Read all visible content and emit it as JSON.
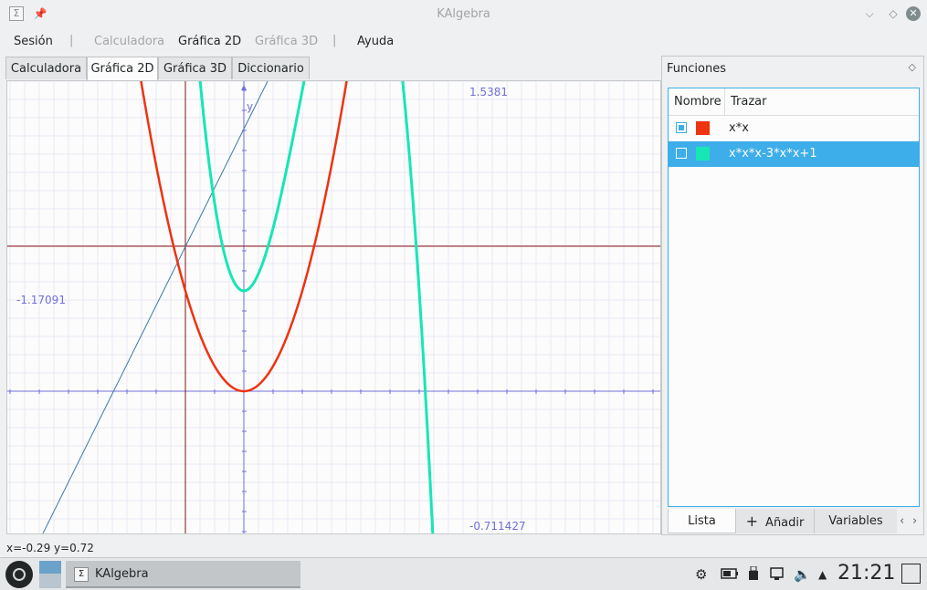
{
  "window": {
    "title": "KAlgebra",
    "app_icon_glyph": "Σ"
  },
  "menu": {
    "items": [
      {
        "label": "Sesión",
        "enabled": true
      },
      {
        "label": "Calculadora",
        "enabled": false
      },
      {
        "label": "Gráfica 2D",
        "enabled": true
      },
      {
        "label": "Gráfica 3D",
        "enabled": false
      },
      {
        "label": "Ayuda",
        "enabled": true
      }
    ],
    "separator": "|"
  },
  "tabs": [
    "Calculadora",
    "Gráfica 2D",
    "Gráfica 3D",
    "Diccionario"
  ],
  "plot": {
    "viewport_labels": {
      "top": "1.5381",
      "bottom": "-0.711427",
      "left": "-1.17091"
    },
    "y_axis_label": "y",
    "colors": {
      "axis": "#6f6fdd",
      "crosshair": "#8b1010",
      "grid": "#e8e8f4"
    }
  },
  "status": {
    "coords": "x=-0.29 y=0.72"
  },
  "dock": {
    "title": "Funciones",
    "columns": [
      "Nombre",
      "Trazar"
    ],
    "functions": [
      {
        "expression": "x*x",
        "color": "#ee3311",
        "checked": true,
        "selected": false
      },
      {
        "expression": "x*x*x-3*x*x+1",
        "color": "#17e6b5",
        "checked": false,
        "selected": true
      }
    ],
    "bottom_tabs": {
      "list": "Lista",
      "add": "Añadir",
      "variables": "Variables"
    },
    "add_icon": "+",
    "arrows": [
      "‹",
      "›"
    ]
  },
  "taskbar": {
    "task_label": "KAlgebra",
    "clock": "21:21",
    "tray_icons": [
      "network-icon",
      "battery-icon",
      "usb-icon",
      "clipboard-icon",
      "volume-icon",
      "expand-arrow-icon"
    ]
  }
}
